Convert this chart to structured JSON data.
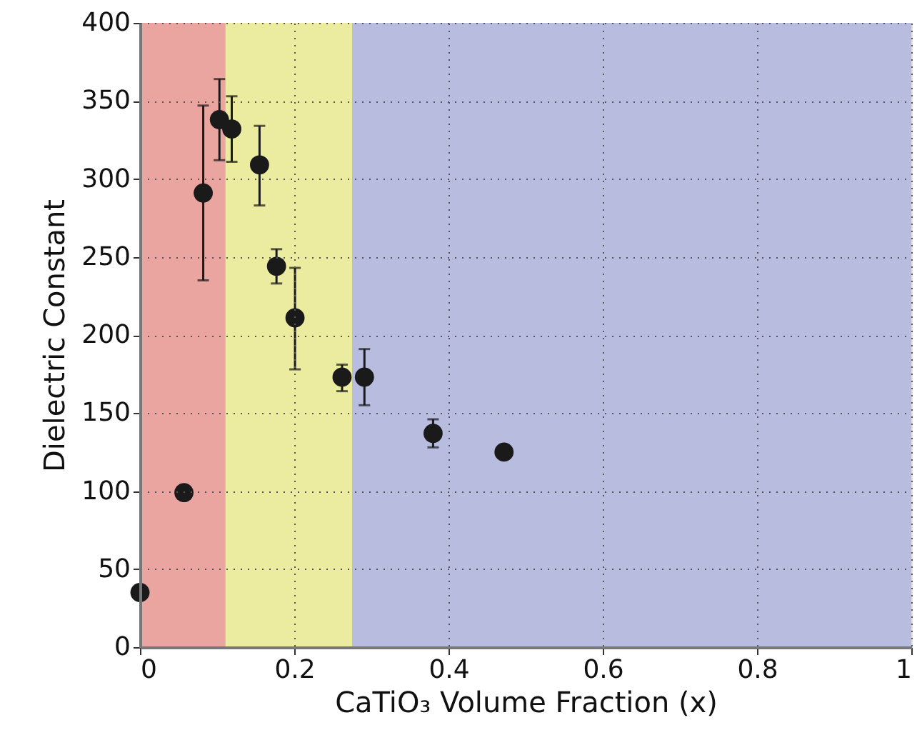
{
  "chart_data": {
    "type": "scatter",
    "xlabel": "CaTiO₃ Volume Fraction (x)",
    "ylabel": "Dielectric Constant",
    "x": [
      0.0,
      0.057,
      0.082,
      0.103,
      0.119,
      0.155,
      0.177,
      0.201,
      0.262,
      0.291,
      0.38,
      0.472
    ],
    "series": [
      {
        "color": "#1a1a1a",
        "values": [
          35,
          99,
          291,
          338,
          332,
          309,
          244,
          211,
          173,
          173,
          137,
          125
        ],
        "errors": [
          null,
          null,
          [
            235,
            347
          ],
          [
            312,
            364
          ],
          [
            311,
            353
          ],
          [
            283,
            334
          ],
          [
            233,
            255
          ],
          [
            178,
            243
          ],
          [
            164,
            181
          ],
          [
            155,
            191
          ],
          [
            128,
            146
          ],
          null
        ]
      }
    ],
    "xlim": [
      0,
      1
    ],
    "ylim": [
      0,
      400
    ],
    "xticks": [
      0,
      0.2,
      0.4,
      0.6,
      0.8,
      1
    ],
    "yticks": [
      0,
      50,
      100,
      150,
      200,
      250,
      300,
      350,
      400
    ],
    "bands": [
      {
        "axis": "x",
        "from": 0,
        "to": 0.111,
        "color": "#eba5a0"
      },
      {
        "axis": "x",
        "from": 0.111,
        "to": 0.275,
        "color": "#ececa0"
      },
      {
        "axis": "x",
        "from": 0.275,
        "to": 1,
        "color": "#b8bde0"
      }
    ],
    "grid": true,
    "marker": "circle"
  }
}
